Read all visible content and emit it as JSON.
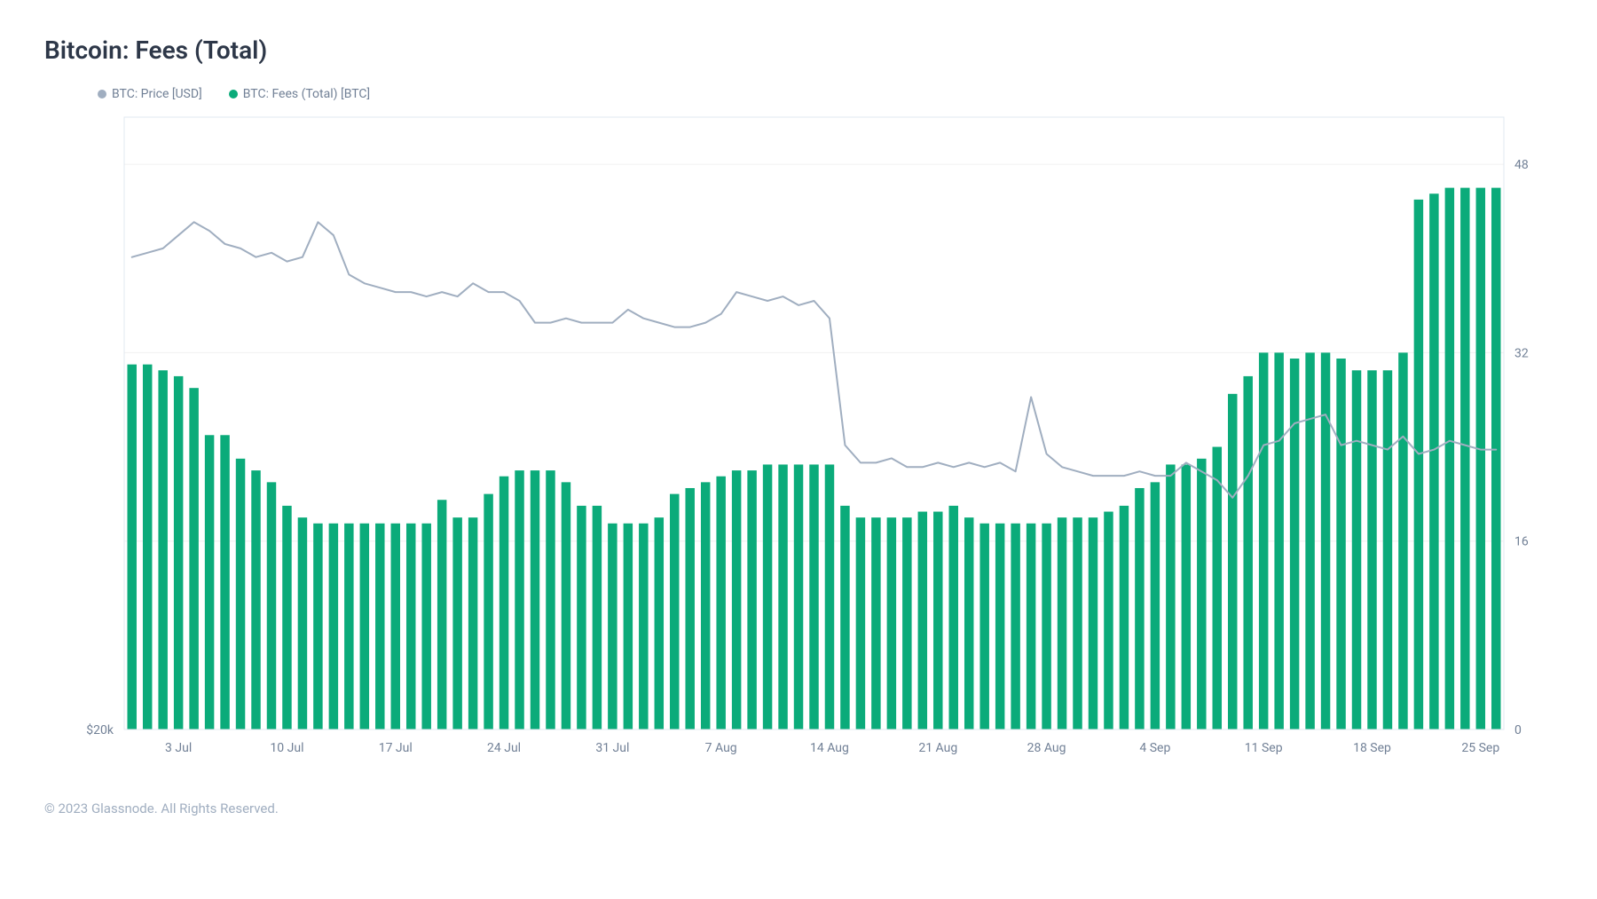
{
  "title": "Bitcoin: Fees (Total)",
  "footer": "© 2023 Glassnode. All Rights Reserved.",
  "legend": [
    {
      "label": "BTC: Price [USD]",
      "color": "#a0aec0"
    },
    {
      "label": "BTC: Fees (Total) [BTC]",
      "color": "#0bab7a"
    }
  ],
  "chart": {
    "type": "bar+line",
    "background_color": "#ffffff",
    "grid_color": "#f0f0f0",
    "border_color": "#e2e8f0",
    "x_labels": [
      "3 Jul",
      "10 Jul",
      "17 Jul",
      "24 Jul",
      "31 Jul",
      "7 Aug",
      "14 Aug",
      "21 Aug",
      "28 Aug",
      "4 Sep",
      "11 Sep",
      "18 Sep",
      "25 Sep"
    ],
    "y_left": {
      "min": 20000,
      "max": 34000,
      "ticks": [
        {
          "v": 20000,
          "label": "$20k"
        }
      ]
    },
    "y_right": {
      "min": 0,
      "max": 52,
      "ticks": [
        {
          "v": 0,
          "label": "0"
        },
        {
          "v": 16,
          "label": "16"
        },
        {
          "v": 32,
          "label": "32"
        },
        {
          "v": 48,
          "label": "48"
        }
      ]
    },
    "bars": {
      "color": "#0bab7a",
      "width_ratio": 0.6,
      "values": [
        31,
        31,
        30.5,
        30,
        29,
        25,
        25,
        23,
        22,
        21,
        19,
        18,
        17.5,
        17.5,
        17.5,
        17.5,
        17.5,
        17.5,
        17.5,
        17.5,
        19.5,
        18,
        18,
        20,
        21.5,
        22,
        22,
        22,
        21,
        19,
        19,
        17.5,
        17.5,
        17.5,
        18,
        20,
        20.5,
        21,
        21.5,
        22,
        22,
        22.5,
        22.5,
        22.5,
        22.5,
        22.5,
        19,
        18,
        18,
        18,
        18,
        18.5,
        18.5,
        19,
        18,
        17.5,
        17.5,
        17.5,
        17.5,
        17.5,
        18,
        18,
        18,
        18.5,
        19,
        20.5,
        21,
        22.5,
        22.5,
        23,
        24,
        28.5,
        30,
        32,
        32,
        31.5,
        32,
        32,
        31.5,
        30.5,
        30.5,
        30.5,
        32,
        45,
        45.5,
        46,
        46,
        46,
        46
      ]
    },
    "line": {
      "color": "#a0aec0",
      "width": 2,
      "values_usd": [
        30800,
        30900,
        31000,
        31300,
        31600,
        31400,
        31100,
        31000,
        30800,
        30900,
        30700,
        30800,
        31600,
        31300,
        30400,
        30200,
        30100,
        30000,
        30000,
        29900,
        30000,
        29900,
        30200,
        30000,
        30000,
        29800,
        29300,
        29300,
        29400,
        29300,
        29300,
        29300,
        29600,
        29400,
        29300,
        29200,
        29200,
        29300,
        29500,
        30000,
        29900,
        29800,
        29900,
        29700,
        29800,
        29400,
        26500,
        26100,
        26100,
        26200,
        26000,
        26000,
        26100,
        26000,
        26100,
        26000,
        26100,
        25900,
        27600,
        26300,
        26000,
        25900,
        25800,
        25800,
        25800,
        25900,
        25800,
        25800,
        26100,
        25900,
        25700,
        25300,
        25800,
        26500,
        26600,
        27000,
        27100,
        27200,
        26500,
        26600,
        26500,
        26400,
        26700,
        26300,
        26400,
        26600,
        26500,
        26400,
        26400
      ]
    },
    "n_points": 89,
    "x_tick_every": 7,
    "x_tick_offset": 3,
    "title_fontsize": 28,
    "axis_fontsize": 14,
    "legend_fontsize": 14
  }
}
